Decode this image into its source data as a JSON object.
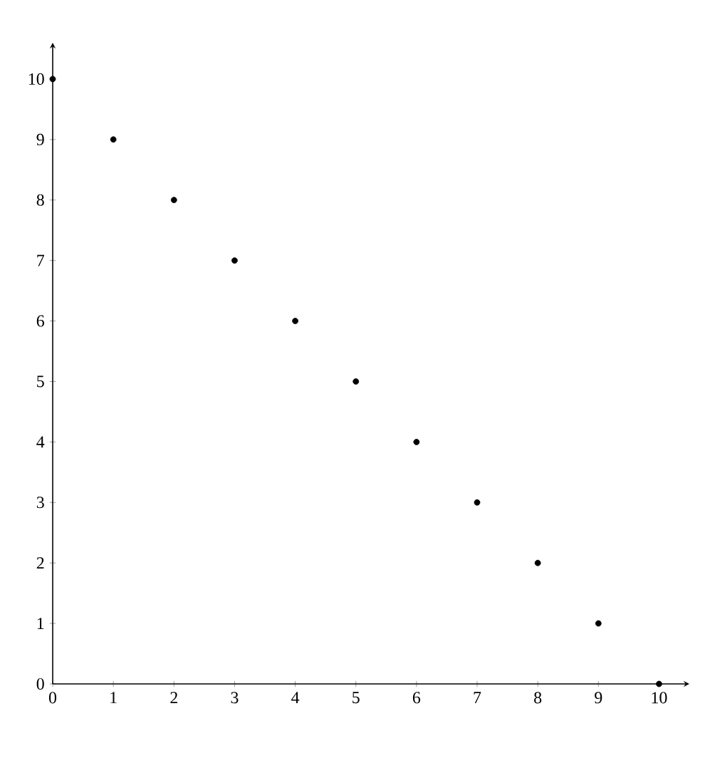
{
  "chart_data": {
    "type": "scatter",
    "x": [
      0,
      1,
      2,
      3,
      4,
      5,
      6,
      7,
      8,
      9,
      10
    ],
    "values": [
      10,
      9,
      8,
      7,
      6,
      5,
      4,
      3,
      2,
      1,
      0
    ],
    "color": "#000000",
    "marker": "circle",
    "xlim": [
      0,
      10.5
    ],
    "ylim": [
      0,
      10.6
    ],
    "xticks": [
      0,
      1,
      2,
      3,
      4,
      5,
      6,
      7,
      8,
      9,
      10
    ],
    "yticks": [
      0,
      1,
      2,
      3,
      4,
      5,
      6,
      7,
      8,
      9,
      10
    ],
    "grid": false
  }
}
